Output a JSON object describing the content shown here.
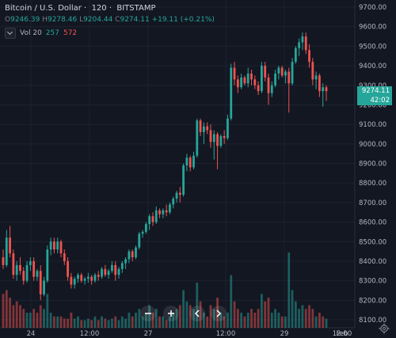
{
  "header": {
    "symbol": "Bitcoin / U.S. Dollar",
    "interval": "120",
    "exchange": "BITSTAMP",
    "open_label": "O",
    "open": "9246.39",
    "high_label": "H",
    "high": "9278.46",
    "low_label": "L",
    "low": "9204.44",
    "close_label": "C",
    "close": "9274.11",
    "change": "+19.11 (+0.21%)"
  },
  "volume": {
    "label": "Vol",
    "period": "20",
    "up": "257",
    "down": "572"
  },
  "price_tags": {
    "last_price": "9274.11",
    "countdown": "42:02"
  },
  "colors": {
    "up": "#26a69a",
    "down": "#ef5350",
    "background": "#131722",
    "grid": "#1e2230"
  },
  "toolbar_icons": [
    "zoom-out-icon",
    "zoom-in-icon",
    "scroll-left-icon",
    "scroll-right-icon"
  ],
  "settings_icon": "gear-icon",
  "chart_data": {
    "type": "candlestick",
    "yaxis": {
      "labels": [
        "9700.00",
        "9600.00",
        "9500.00",
        "9400.00",
        "9300.00",
        "9200.00",
        "9100.00",
        "9000.00",
        "8900.00",
        "8800.00",
        "8700.00",
        "8600.00",
        "8500.00",
        "8400.00",
        "8300.00",
        "8200.00",
        "8100.00"
      ],
      "range": [
        8080,
        9720
      ]
    },
    "xaxis": {
      "labels": [
        "24",
        "12:00",
        "27",
        "12:00",
        "29",
        "12:00",
        "Feb"
      ]
    },
    "candles_ohlc": [
      [
        8420,
        8460,
        8360,
        8380
      ],
      [
        8380,
        8560,
        8370,
        8520
      ],
      [
        8520,
        8580,
        8420,
        8440
      ],
      [
        8440,
        8460,
        8310,
        8330
      ],
      [
        8330,
        8400,
        8300,
        8380
      ],
      [
        8380,
        8420,
        8330,
        8350
      ],
      [
        8350,
        8370,
        8280,
        8300
      ],
      [
        8300,
        8400,
        8290,
        8380
      ],
      [
        8380,
        8420,
        8350,
        8400
      ],
      [
        8400,
        8420,
        8300,
        8320
      ],
      [
        8320,
        8360,
        8300,
        8350
      ],
      [
        8350,
        8380,
        8200,
        8230
      ],
      [
        8230,
        8320,
        8220,
        8300
      ],
      [
        8300,
        8480,
        8290,
        8460
      ],
      [
        8460,
        8520,
        8430,
        8500
      ],
      [
        8500,
        8520,
        8440,
        8460
      ],
      [
        8460,
        8520,
        8440,
        8500
      ],
      [
        8500,
        8510,
        8420,
        8440
      ],
      [
        8440,
        8460,
        8380,
        8400
      ],
      [
        8400,
        8420,
        8300,
        8320
      ],
      [
        8320,
        8340,
        8260,
        8280
      ],
      [
        8280,
        8320,
        8260,
        8310
      ],
      [
        8310,
        8340,
        8290,
        8330
      ],
      [
        8330,
        8340,
        8290,
        8300
      ],
      [
        8300,
        8320,
        8280,
        8310
      ],
      [
        8310,
        8340,
        8290,
        8320
      ],
      [
        8320,
        8330,
        8280,
        8300
      ],
      [
        8300,
        8340,
        8290,
        8330
      ],
      [
        8330,
        8350,
        8300,
        8320
      ],
      [
        8320,
        8370,
        8310,
        8360
      ],
      [
        8360,
        8380,
        8320,
        8330
      ],
      [
        8330,
        8360,
        8310,
        8350
      ],
      [
        8350,
        8400,
        8340,
        8380
      ],
      [
        8380,
        8400,
        8300,
        8330
      ],
      [
        8330,
        8370,
        8310,
        8360
      ],
      [
        8360,
        8400,
        8340,
        8390
      ],
      [
        8390,
        8420,
        8360,
        8410
      ],
      [
        8410,
        8460,
        8390,
        8450
      ],
      [
        8450,
        8460,
        8400,
        8420
      ],
      [
        8420,
        8480,
        8410,
        8470
      ],
      [
        8470,
        8550,
        8460,
        8540
      ],
      [
        8540,
        8560,
        8520,
        8550
      ],
      [
        8550,
        8600,
        8540,
        8590
      ],
      [
        8590,
        8640,
        8560,
        8630
      ],
      [
        8630,
        8650,
        8580,
        8600
      ],
      [
        8600,
        8680,
        8590,
        8660
      ],
      [
        8660,
        8670,
        8620,
        8640
      ],
      [
        8640,
        8670,
        8620,
        8660
      ],
      [
        8660,
        8690,
        8630,
        8650
      ],
      [
        8650,
        8700,
        8640,
        8690
      ],
      [
        8690,
        8730,
        8670,
        8720
      ],
      [
        8720,
        8760,
        8700,
        8750
      ],
      [
        8750,
        8780,
        8700,
        8740
      ],
      [
        8740,
        8900,
        8730,
        8890
      ],
      [
        8890,
        8950,
        8860,
        8930
      ],
      [
        8930,
        8940,
        8860,
        8880
      ],
      [
        8880,
        8960,
        8870,
        8940
      ],
      [
        8940,
        9130,
        8930,
        9120
      ],
      [
        9120,
        9130,
        9040,
        9060
      ],
      [
        9060,
        9110,
        9000,
        9090
      ],
      [
        9090,
        9110,
        9050,
        9070
      ],
      [
        9070,
        9100,
        8980,
        9010
      ],
      [
        9010,
        9070,
        8920,
        9050
      ],
      [
        9050,
        9060,
        8870,
        8990
      ],
      [
        8990,
        9050,
        8980,
        9040
      ],
      [
        9040,
        9070,
        9000,
        9030
      ],
      [
        9030,
        9150,
        9020,
        9130
      ],
      [
        9130,
        9410,
        9120,
        9390
      ],
      [
        9390,
        9420,
        9300,
        9330
      ],
      [
        9330,
        9350,
        9260,
        9290
      ],
      [
        9290,
        9360,
        9280,
        9340
      ],
      [
        9340,
        9350,
        9300,
        9310
      ],
      [
        9310,
        9390,
        9290,
        9360
      ],
      [
        9360,
        9380,
        9300,
        9330
      ],
      [
        9330,
        9350,
        9280,
        9300
      ],
      [
        9300,
        9320,
        9250,
        9270
      ],
      [
        9270,
        9420,
        9260,
        9400
      ],
      [
        9400,
        9420,
        9320,
        9340
      ],
      [
        9340,
        9360,
        9200,
        9260
      ],
      [
        9260,
        9320,
        9240,
        9300
      ],
      [
        9300,
        9380,
        9290,
        9360
      ],
      [
        9360,
        9400,
        9330,
        9390
      ],
      [
        9390,
        9400,
        9340,
        9350
      ],
      [
        9350,
        9380,
        9310,
        9370
      ],
      [
        9370,
        9390,
        9160,
        9310
      ],
      [
        9310,
        9440,
        9300,
        9420
      ],
      [
        9420,
        9500,
        9410,
        9490
      ],
      [
        9490,
        9540,
        9450,
        9520
      ],
      [
        9520,
        9570,
        9480,
        9550
      ],
      [
        9550,
        9570,
        9460,
        9480
      ],
      [
        9480,
        9510,
        9390,
        9420
      ],
      [
        9420,
        9440,
        9300,
        9330
      ],
      [
        9330,
        9370,
        9280,
        9350
      ],
      [
        9350,
        9360,
        9240,
        9270
      ],
      [
        9270,
        9310,
        9190,
        9290
      ],
      [
        9290,
        9300,
        9220,
        9270
      ]
    ],
    "volume_bars": [
      [
        0.45,
        0
      ],
      [
        0.5,
        0
      ],
      [
        0.4,
        0
      ],
      [
        0.3,
        0
      ],
      [
        0.35,
        0
      ],
      [
        0.3,
        0
      ],
      [
        0.25,
        0
      ],
      [
        0.2,
        1
      ],
      [
        0.2,
        1
      ],
      [
        0.25,
        0
      ],
      [
        0.2,
        0
      ],
      [
        0.3,
        0
      ],
      [
        0.25,
        1
      ],
      [
        0.45,
        1
      ],
      [
        0.2,
        1
      ],
      [
        0.15,
        0
      ],
      [
        0.15,
        1
      ],
      [
        0.15,
        0
      ],
      [
        0.12,
        0
      ],
      [
        0.12,
        0
      ],
      [
        0.2,
        0
      ],
      [
        0.12,
        1
      ],
      [
        0.15,
        1
      ],
      [
        0.1,
        0
      ],
      [
        0.1,
        1
      ],
      [
        0.12,
        1
      ],
      [
        0.1,
        0
      ],
      [
        0.15,
        1
      ],
      [
        0.1,
        0
      ],
      [
        0.15,
        1
      ],
      [
        0.12,
        0
      ],
      [
        0.1,
        1
      ],
      [
        0.12,
        1
      ],
      [
        0.15,
        0
      ],
      [
        0.1,
        1
      ],
      [
        0.15,
        1
      ],
      [
        0.12,
        1
      ],
      [
        0.2,
        1
      ],
      [
        0.15,
        0
      ],
      [
        0.2,
        1
      ],
      [
        0.25,
        1
      ],
      [
        0.15,
        1
      ],
      [
        0.2,
        1
      ],
      [
        0.3,
        1
      ],
      [
        0.2,
        0
      ],
      [
        0.25,
        1
      ],
      [
        0.15,
        0
      ],
      [
        0.15,
        1
      ],
      [
        0.1,
        0
      ],
      [
        0.15,
        1
      ],
      [
        0.2,
        1
      ],
      [
        0.25,
        1
      ],
      [
        0.3,
        0
      ],
      [
        0.5,
        1
      ],
      [
        0.35,
        1
      ],
      [
        0.3,
        0
      ],
      [
        0.25,
        1
      ],
      [
        0.6,
        1
      ],
      [
        0.35,
        0
      ],
      [
        0.2,
        1
      ],
      [
        0.15,
        0
      ],
      [
        0.3,
        0
      ],
      [
        0.25,
        1
      ],
      [
        0.4,
        0
      ],
      [
        0.2,
        1
      ],
      [
        0.15,
        0
      ],
      [
        0.2,
        1
      ],
      [
        0.7,
        1
      ],
      [
        0.35,
        0
      ],
      [
        0.25,
        0
      ],
      [
        0.2,
        1
      ],
      [
        0.15,
        0
      ],
      [
        0.2,
        1
      ],
      [
        0.25,
        0
      ],
      [
        0.2,
        0
      ],
      [
        0.25,
        0
      ],
      [
        0.45,
        1
      ],
      [
        0.35,
        0
      ],
      [
        0.4,
        0
      ],
      [
        0.2,
        1
      ],
      [
        0.25,
        1
      ],
      [
        0.2,
        1
      ],
      [
        0.15,
        0
      ],
      [
        0.15,
        1
      ],
      [
        1.0,
        1
      ],
      [
        0.5,
        1
      ],
      [
        0.35,
        1
      ],
      [
        0.25,
        1
      ],
      [
        0.3,
        1
      ],
      [
        0.25,
        0
      ],
      [
        0.3,
        0
      ],
      [
        0.25,
        0
      ],
      [
        0.15,
        1
      ],
      [
        0.2,
        0
      ],
      [
        0.15,
        0
      ],
      [
        0.12,
        1
      ]
    ]
  }
}
